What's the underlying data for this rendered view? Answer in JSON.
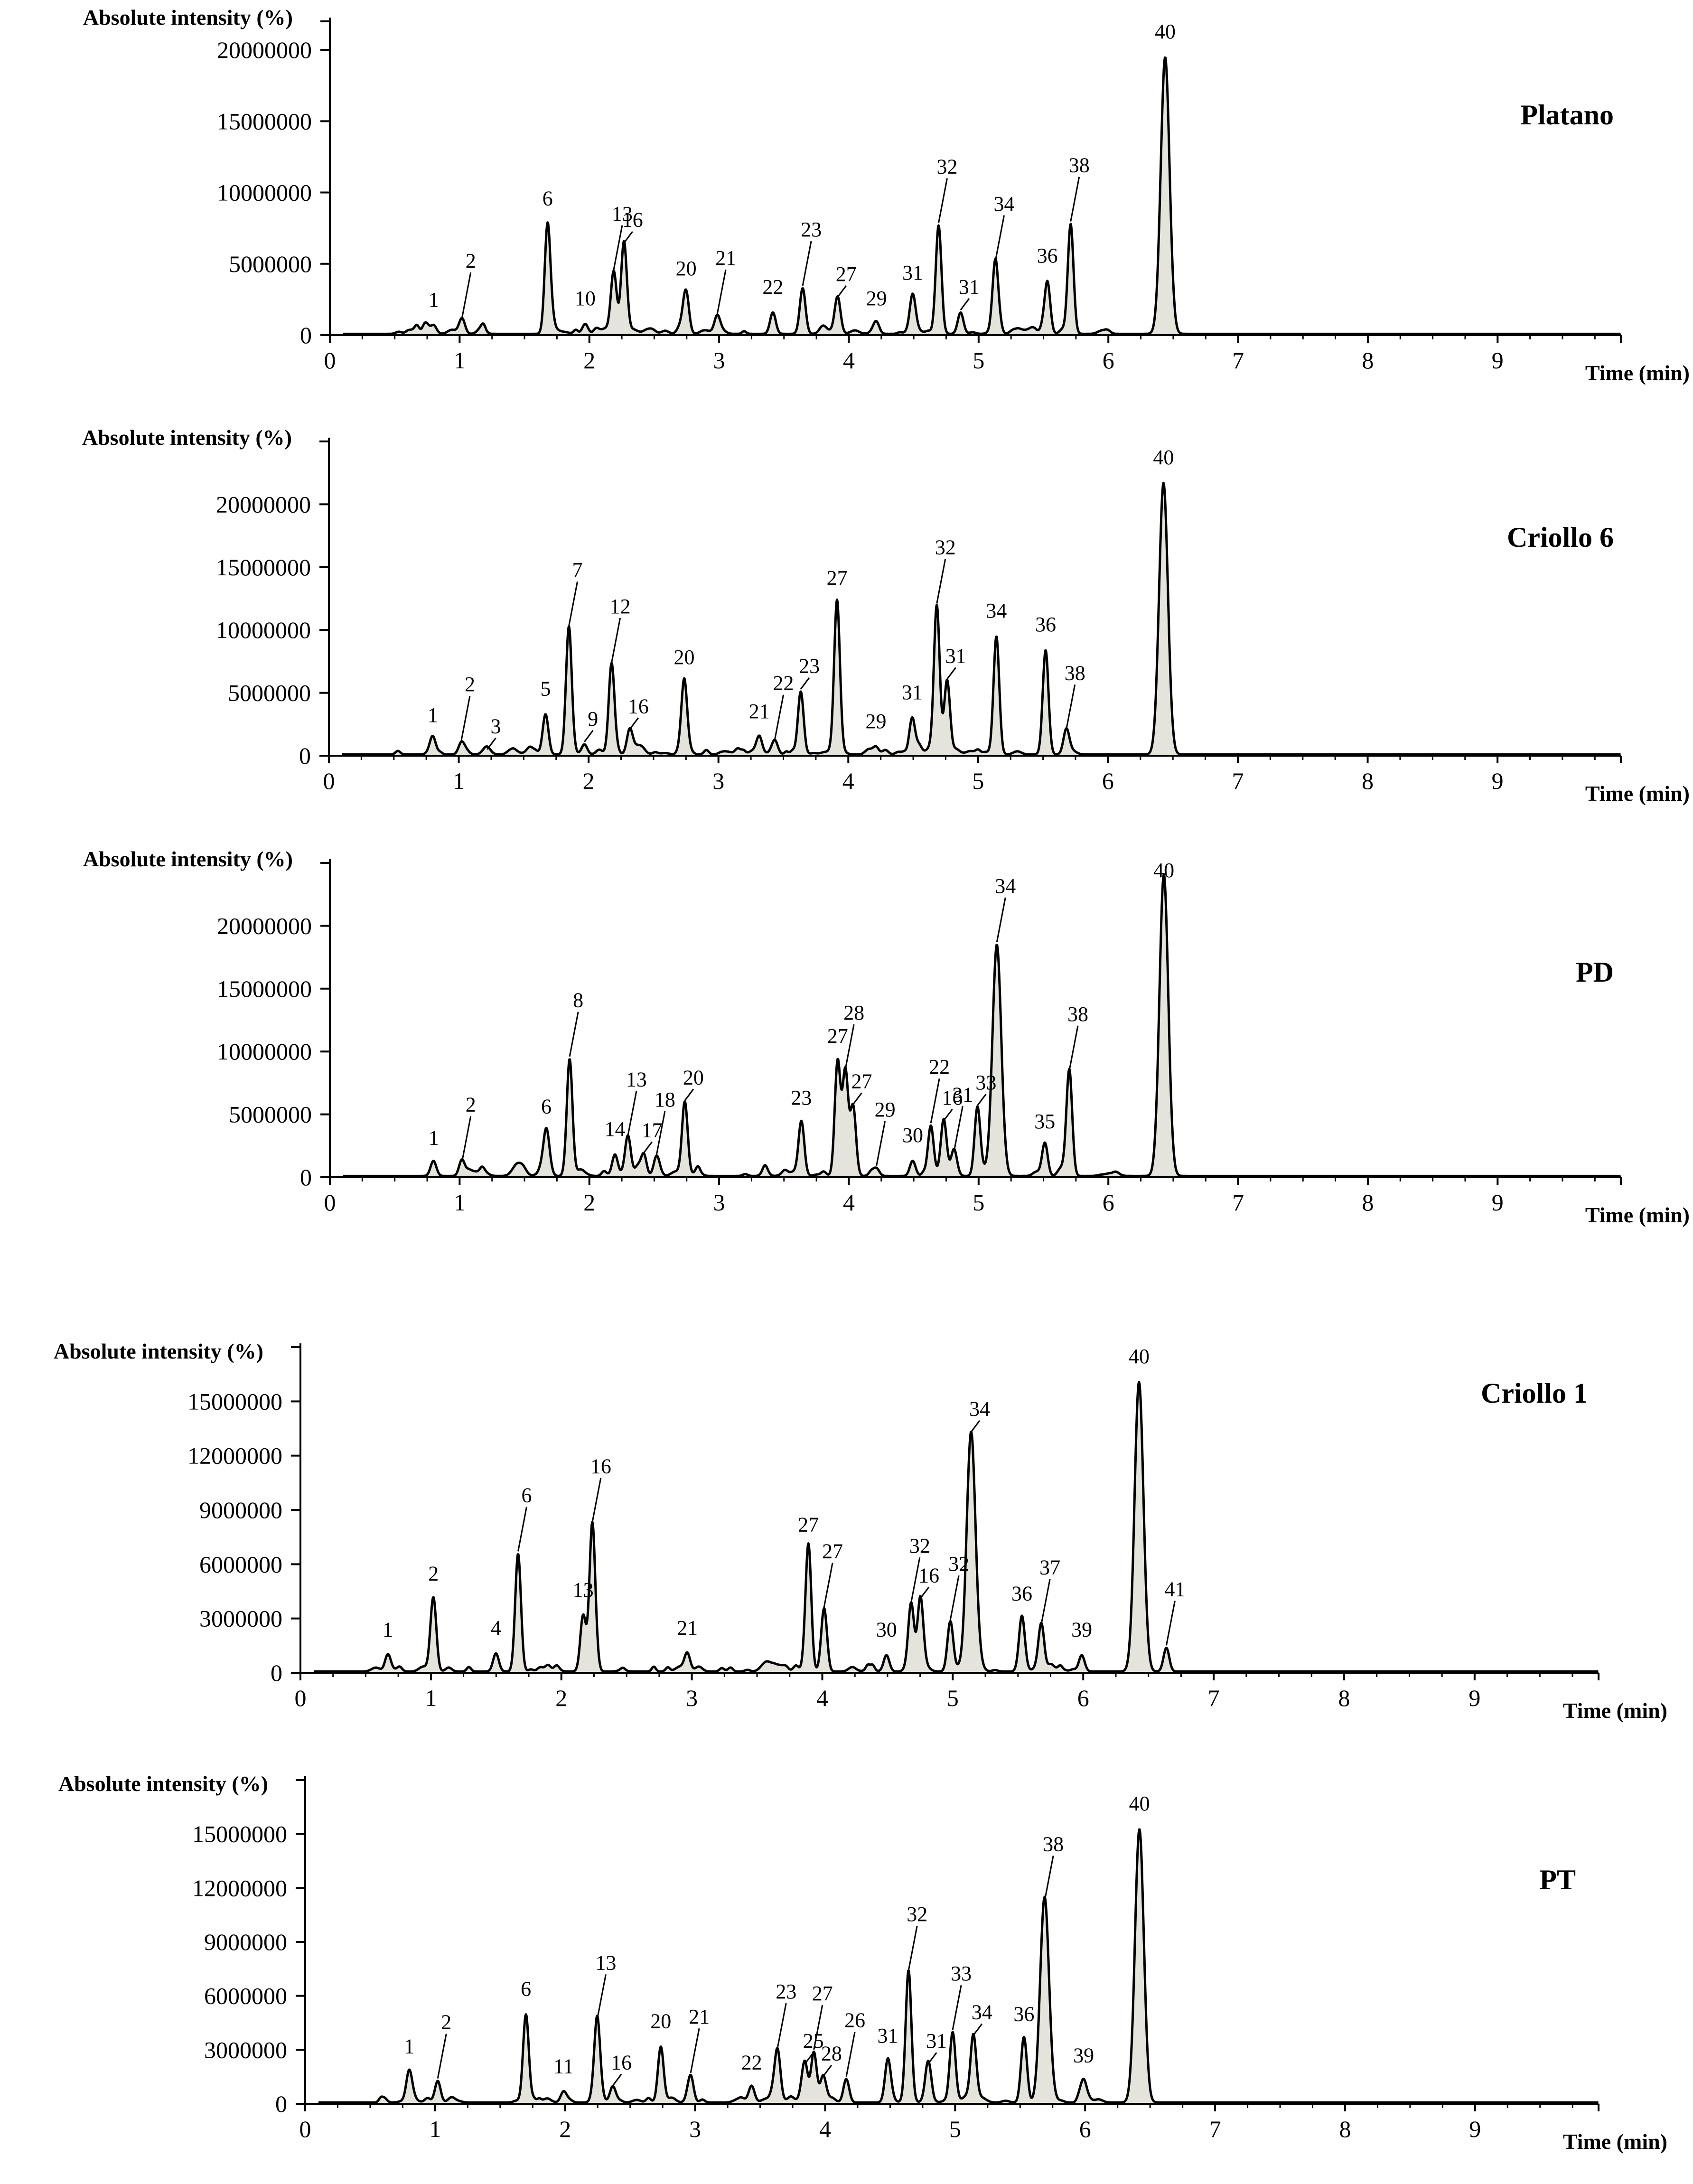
{
  "figure": {
    "y_axis_label": "Absolute intensity (%)",
    "x_axis_label": "Time (min)",
    "fill_color": "#e4e4dc",
    "line_color": "#000000"
  },
  "chart_data": [
    {
      "type": "area",
      "sample": "Platano",
      "ylabel": "Absolute intensity (%)",
      "xlabel": "Time (min)",
      "xlim": [
        0,
        10
      ],
      "ylim": [
        0,
        22000000
      ],
      "x_ticks": [
        "0",
        "1",
        "2",
        "3",
        "4",
        "5",
        "6",
        "7",
        "8",
        "9"
      ],
      "y_ticks": [
        "0",
        "5000000",
        "10000000",
        "15000000",
        "20000000"
      ],
      "peaks": [
        {
          "label": "1",
          "time": 0.78,
          "intensity": 600000
        },
        {
          "label": "2",
          "time": 1.0,
          "intensity": 1000000
        },
        {
          "label": "6",
          "time": 1.66,
          "intensity": 7700000
        },
        {
          "label": "10",
          "time": 1.95,
          "intensity": 700000
        },
        {
          "label": "13",
          "time": 2.17,
          "intensity": 4300000
        },
        {
          "label": "16",
          "time": 2.25,
          "intensity": 6200000
        },
        {
          "label": "20",
          "time": 2.73,
          "intensity": 2800000
        },
        {
          "label": "21",
          "time": 2.97,
          "intensity": 1200000
        },
        {
          "label": "22",
          "time": 3.4,
          "intensity": 1500000
        },
        {
          "label": "23",
          "time": 3.63,
          "intensity": 3200000
        },
        {
          "label": "27",
          "time": 3.9,
          "intensity": 2400000
        },
        {
          "label": "29",
          "time": 4.2,
          "intensity": 700000
        },
        {
          "label": "31",
          "time": 4.48,
          "intensity": 2500000
        },
        {
          "label": "32",
          "time": 4.68,
          "intensity": 7600000
        },
        {
          "label": "31",
          "time": 4.85,
          "intensity": 1500000
        },
        {
          "label": "34",
          "time": 5.12,
          "intensity": 5000000
        },
        {
          "label": "36",
          "time": 5.52,
          "intensity": 3700000
        },
        {
          "label": "38",
          "time": 5.7,
          "intensity": 7700000
        },
        {
          "label": "40",
          "time": 6.43,
          "intensity": 19400000
        }
      ]
    },
    {
      "type": "area",
      "sample": "Criollo 6",
      "ylabel": "Absolute intensity (%)",
      "xlabel": "Time (min)",
      "xlim": [
        0,
        10
      ],
      "ylim": [
        0,
        25000000
      ],
      "x_ticks": [
        "0",
        "1",
        "2",
        "3",
        "4",
        "5",
        "6",
        "7",
        "8",
        "9"
      ],
      "y_ticks": [
        "0",
        "5000000",
        "10000000",
        "15000000",
        "20000000"
      ],
      "peaks": [
        {
          "label": "1",
          "time": 0.78,
          "intensity": 1100000
        },
        {
          "label": "2",
          "time": 1.0,
          "intensity": 900000
        },
        {
          "label": "3",
          "time": 1.2,
          "intensity": 200000
        },
        {
          "label": "5",
          "time": 1.65,
          "intensity": 3200000
        },
        {
          "label": "7",
          "time": 1.83,
          "intensity": 10000000
        },
        {
          "label": "9",
          "time": 1.95,
          "intensity": 800000
        },
        {
          "label": "12",
          "time": 2.16,
          "intensity": 7100000
        },
        {
          "label": "16",
          "time": 2.3,
          "intensity": 1800000
        },
        {
          "label": "20",
          "time": 2.72,
          "intensity": 5700000
        },
        {
          "label": "21",
          "time": 3.3,
          "intensity": 1400000
        },
        {
          "label": "22",
          "time": 3.42,
          "intensity": 1000000
        },
        {
          "label": "23",
          "time": 3.62,
          "intensity": 5000000
        },
        {
          "label": "27",
          "time": 3.9,
          "intensity": 12000000
        },
        {
          "label": "29",
          "time": 4.2,
          "intensity": 600000
        },
        {
          "label": "31",
          "time": 4.48,
          "intensity": 2900000
        },
        {
          "label": "32",
          "time": 4.67,
          "intensity": 11800000
        },
        {
          "label": "31",
          "time": 4.75,
          "intensity": 5800000
        },
        {
          "label": "34",
          "time": 5.13,
          "intensity": 9400000
        },
        {
          "label": "36",
          "time": 5.51,
          "intensity": 8300000
        },
        {
          "label": "38",
          "time": 5.67,
          "intensity": 1800000
        },
        {
          "label": "40",
          "time": 6.42,
          "intensity": 21600000
        }
      ]
    },
    {
      "type": "area",
      "sample": "PD",
      "ylabel": "Absolute intensity (%)",
      "xlabel": "Time (min)",
      "xlim": [
        0,
        10
      ],
      "ylim": [
        0,
        25000000
      ],
      "x_ticks": [
        "0",
        "1",
        "2",
        "3",
        "4",
        "5",
        "6",
        "7",
        "8",
        "9"
      ],
      "y_ticks": [
        "0",
        "5000000",
        "10000000",
        "15000000",
        "20000000"
      ],
      "peaks": [
        {
          "label": "1",
          "time": 0.78,
          "intensity": 1000000
        },
        {
          "label": "2",
          "time": 1.0,
          "intensity": 1000000
        },
        {
          "label": "6",
          "time": 1.65,
          "intensity": 3500000
        },
        {
          "label": "8",
          "time": 1.83,
          "intensity": 9300000
        },
        {
          "label": "14",
          "time": 2.18,
          "intensity": 1700000
        },
        {
          "label": "13",
          "time": 2.28,
          "intensity": 3000000
        },
        {
          "label": "17",
          "time": 2.4,
          "intensity": 1600000
        },
        {
          "label": "18",
          "time": 2.5,
          "intensity": 1400000
        },
        {
          "label": "20",
          "time": 2.72,
          "intensity": 5800000
        },
        {
          "label": "23",
          "time": 3.62,
          "intensity": 4200000
        },
        {
          "label": "27",
          "time": 3.9,
          "intensity": 9100000
        },
        {
          "label": "28",
          "time": 3.96,
          "intensity": 8300000
        },
        {
          "label": "27",
          "time": 4.02,
          "intensity": 5500000
        },
        {
          "label": "29",
          "time": 4.2,
          "intensity": 600000
        },
        {
          "label": "30",
          "time": 4.48,
          "intensity": 1200000
        },
        {
          "label": "22",
          "time": 4.62,
          "intensity": 4000000
        },
        {
          "label": "16",
          "time": 4.72,
          "intensity": 4200000
        },
        {
          "label": "31",
          "time": 4.8,
          "intensity": 1800000
        },
        {
          "label": "33",
          "time": 4.98,
          "intensity": 5400000
        },
        {
          "label": "34",
          "time": 5.13,
          "intensity": 18400000
        },
        {
          "label": "35",
          "time": 5.5,
          "intensity": 2300000
        },
        {
          "label": "38",
          "time": 5.69,
          "intensity": 8200000
        },
        {
          "label": "40",
          "time": 6.42,
          "intensity": 24000000
        }
      ]
    },
    {
      "type": "area",
      "sample": "Criollo 1",
      "ylabel": "Absolute intensity (%)",
      "xlabel": "Time (min)",
      "xlim": [
        0,
        10
      ],
      "ylim": [
        0,
        18000000
      ],
      "x_ticks": [
        "0",
        "1",
        "2",
        "3",
        "4",
        "5",
        "6",
        "7",
        "8",
        "9"
      ],
      "y_ticks": [
        "0",
        "3000000",
        "6000000",
        "9000000",
        "12000000",
        "15000000"
      ],
      "peaks": [
        {
          "label": "1",
          "time": 0.65,
          "intensity": 900000
        },
        {
          "label": "2",
          "time": 1.0,
          "intensity": 4000000
        },
        {
          "label": "4",
          "time": 1.48,
          "intensity": 1000000
        },
        {
          "label": "6",
          "time": 1.65,
          "intensity": 6500000
        },
        {
          "label": "13",
          "time": 2.15,
          "intensity": 3100000
        },
        {
          "label": "16",
          "time": 2.22,
          "intensity": 8100000
        },
        {
          "label": "21",
          "time": 2.95,
          "intensity": 1000000
        },
        {
          "label": "27",
          "time": 3.88,
          "intensity": 6700000
        },
        {
          "label": "27",
          "time": 4.0,
          "intensity": 3400000
        },
        {
          "label": "30",
          "time": 4.48,
          "intensity": 900000
        },
        {
          "label": "32",
          "time": 4.67,
          "intensity": 3700000
        },
        {
          "label": "16",
          "time": 4.74,
          "intensity": 3900000
        },
        {
          "label": "32",
          "time": 4.97,
          "intensity": 2700000
        },
        {
          "label": "34",
          "time": 5.13,
          "intensity": 13100000
        },
        {
          "label": "36",
          "time": 5.52,
          "intensity": 2900000
        },
        {
          "label": "37",
          "time": 5.67,
          "intensity": 2500000
        },
        {
          "label": "39",
          "time": 5.98,
          "intensity": 900000
        },
        {
          "label": "40",
          "time": 6.42,
          "intensity": 16000000
        },
        {
          "label": "41",
          "time": 6.63,
          "intensity": 1300000
        }
      ]
    },
    {
      "type": "area",
      "sample": "PT",
      "ylabel": "Absolute intensity (%)",
      "xlabel": "Time (min)",
      "xlim": [
        0,
        10
      ],
      "ylim": [
        0,
        18000000
      ],
      "x_ticks": [
        "0",
        "1",
        "2",
        "3",
        "4",
        "5",
        "6",
        "7",
        "8",
        "9"
      ],
      "y_ticks": [
        "0",
        "3000000",
        "6000000",
        "9000000",
        "12000000",
        "15000000"
      ],
      "peaks": [
        {
          "label": "1",
          "time": 0.78,
          "intensity": 1700000
        },
        {
          "label": "2",
          "time": 1.0,
          "intensity": 1200000
        },
        {
          "label": "6",
          "time": 1.68,
          "intensity": 4900000
        },
        {
          "label": "11",
          "time": 1.97,
          "intensity": 600000
        },
        {
          "label": "13",
          "time": 2.23,
          "intensity": 4500000
        },
        {
          "label": "16",
          "time": 2.35,
          "intensity": 800000
        },
        {
          "label": "20",
          "time": 2.72,
          "intensity": 3100000
        },
        {
          "label": "21",
          "time": 2.95,
          "intensity": 1500000
        },
        {
          "label": "22",
          "time": 3.42,
          "intensity": 800000
        },
        {
          "label": "23",
          "time": 3.62,
          "intensity": 2900000
        },
        {
          "label": "25",
          "time": 3.83,
          "intensity": 2000000
        },
        {
          "label": "27",
          "time": 3.9,
          "intensity": 2800000
        },
        {
          "label": "28",
          "time": 3.97,
          "intensity": 1300000
        },
        {
          "label": "26",
          "time": 4.15,
          "intensity": 1300000
        },
        {
          "label": "31",
          "time": 4.47,
          "intensity": 2300000
        },
        {
          "label": "32",
          "time": 4.63,
          "intensity": 7200000
        },
        {
          "label": "31",
          "time": 4.78,
          "intensity": 2000000
        },
        {
          "label": "33",
          "time": 4.97,
          "intensity": 3900000
        },
        {
          "label": "34",
          "time": 5.13,
          "intensity": 3600000
        },
        {
          "label": "36",
          "time": 5.52,
          "intensity": 3500000
        },
        {
          "label": "38",
          "time": 5.68,
          "intensity": 11100000
        },
        {
          "label": "39",
          "time": 5.98,
          "intensity": 1200000
        },
        {
          "label": "40",
          "time": 6.41,
          "intensity": 15200000
        }
      ]
    }
  ]
}
